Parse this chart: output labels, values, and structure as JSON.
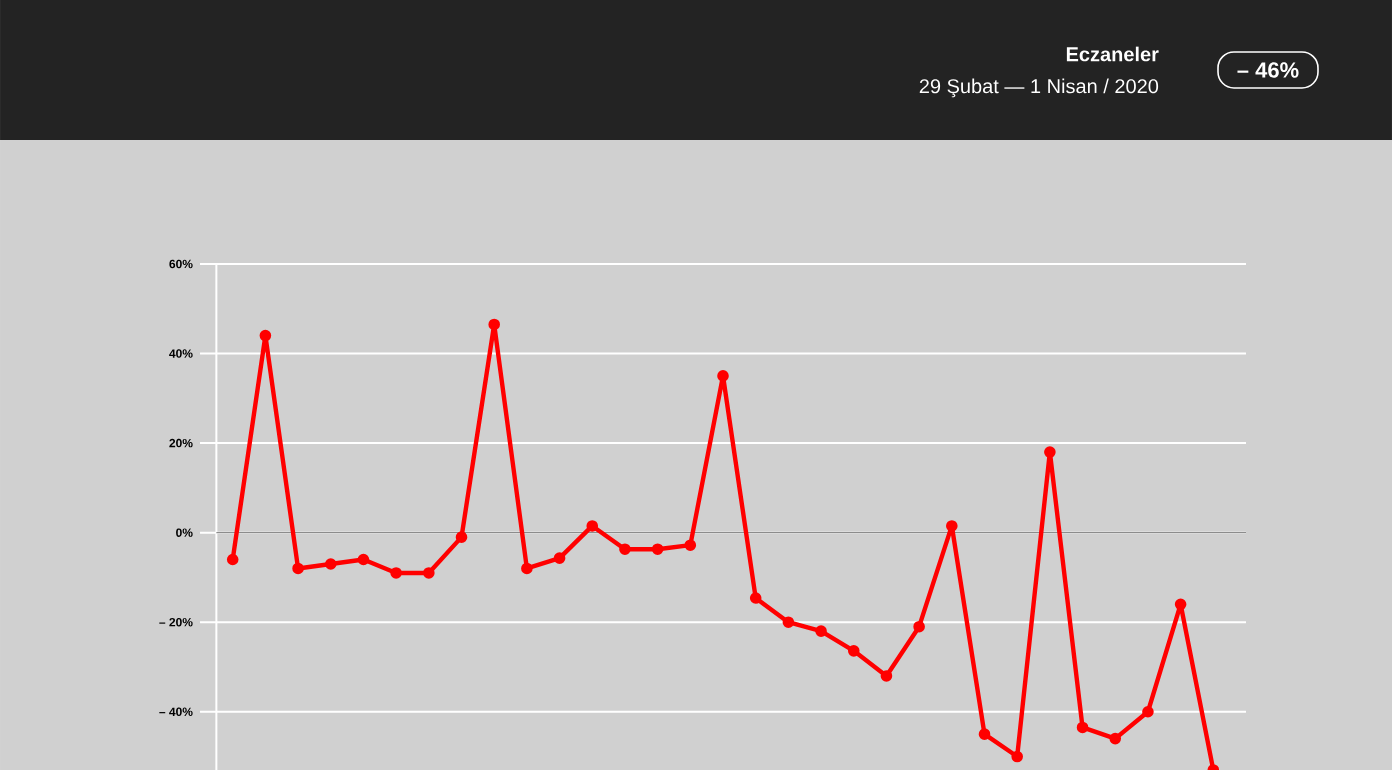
{
  "chart_data": {
    "type": "line",
    "title": "Eczaneler",
    "subtitle": "29 Şubat — 1 Nisan / 2020",
    "annotations": [
      "– 46%"
    ],
    "categories": [
      null,
      null,
      null,
      null,
      null,
      null,
      null,
      null,
      null,
      null,
      null,
      null,
      null,
      null,
      null,
      null,
      null,
      null,
      null,
      null,
      null,
      null,
      null,
      null,
      null,
      null,
      null,
      null,
      null,
      null,
      null
    ],
    "series": [
      {
        "color": "#ff0000",
        "values": [
          -6,
          44,
          -8,
          -7,
          -6,
          -9,
          -9,
          -1,
          46.5,
          -8,
          -5.7,
          1.5,
          -3.7,
          -3.7,
          -2.8,
          35,
          -14.6,
          -20,
          -22,
          -26.4,
          -32,
          -21,
          1.5,
          -45,
          -50,
          18,
          -43.5,
          -46,
          -40,
          -16,
          -53
        ]
      }
    ],
    "ylim": [
      -53,
      60
    ],
    "yticks": [
      {
        "value": -40,
        "label": "– 40%"
      },
      {
        "value": -20,
        "label": "– 20%"
      },
      {
        "value": 0,
        "label": "0%"
      },
      {
        "value": 20,
        "label": "20%"
      },
      {
        "value": 40,
        "label": "40%"
      },
      {
        "value": 60,
        "label": "60%"
      }
    ],
    "grid": "y",
    "marker": "circle",
    "line_style": "solid",
    "tick_labels": "y",
    "ref_lines": [
      {
        "axis": "y",
        "value": 0,
        "color": "#8c8c8c"
      }
    ]
  }
}
